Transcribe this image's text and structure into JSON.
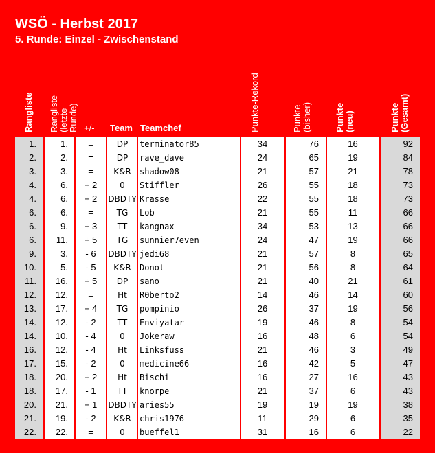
{
  "title": "WSÖ - Herbst 2017",
  "subtitle": "5. Runde: Einzel - Zwischenstand",
  "headers": {
    "rank": "Rangliste",
    "prev_rank": "Rangliste (letzte Runde)",
    "diff": "+/-",
    "team": "Team",
    "chief": "Teamchef",
    "record": "Punkte-Rekord",
    "points_before": "Punkte (bisher)",
    "points_new": "Punkte (neu)",
    "points_total": "Punkte (Gesamt)"
  },
  "colors": {
    "background": "#ff0000",
    "highlight_column": "#d9d9d9",
    "cell": "#ffffff",
    "text": "#000000"
  },
  "rows": [
    {
      "rank": "1.",
      "prev": "1.",
      "diff": "=",
      "team": "DP",
      "chief": "terminator85",
      "record": "34",
      "bisher": "76",
      "neu": "16",
      "gesamt": "92"
    },
    {
      "rank": "2.",
      "prev": "2.",
      "diff": "=",
      "team": "DP",
      "chief": "rave_dave",
      "record": "24",
      "bisher": "65",
      "neu": "19",
      "gesamt": "84"
    },
    {
      "rank": "3.",
      "prev": "3.",
      "diff": "=",
      "team": "K&R",
      "chief": "shadow08",
      "record": "21",
      "bisher": "57",
      "neu": "21",
      "gesamt": "78"
    },
    {
      "rank": "4.",
      "prev": "6.",
      "diff": "+ 2",
      "team": "0",
      "chief": "Stiffler",
      "record": "26",
      "bisher": "55",
      "neu": "18",
      "gesamt": "73"
    },
    {
      "rank": "4.",
      "prev": "6.",
      "diff": "+ 2",
      "team": "DBDTY",
      "chief": "Krasse",
      "record": "22",
      "bisher": "55",
      "neu": "18",
      "gesamt": "73"
    },
    {
      "rank": "6.",
      "prev": "6.",
      "diff": "=",
      "team": "TG",
      "chief": "Lob",
      "record": "21",
      "bisher": "55",
      "neu": "11",
      "gesamt": "66"
    },
    {
      "rank": "6.",
      "prev": "9.",
      "diff": "+ 3",
      "team": "TT",
      "chief": "kangnax",
      "record": "34",
      "bisher": "53",
      "neu": "13",
      "gesamt": "66"
    },
    {
      "rank": "6.",
      "prev": "11.",
      "diff": "+ 5",
      "team": "TG",
      "chief": "sunnier7even",
      "record": "24",
      "bisher": "47",
      "neu": "19",
      "gesamt": "66"
    },
    {
      "rank": "9.",
      "prev": "3.",
      "diff": "- 6",
      "team": "DBDTY",
      "chief": "jedi68",
      "record": "21",
      "bisher": "57",
      "neu": "8",
      "gesamt": "65"
    },
    {
      "rank": "10.",
      "prev": "5.",
      "diff": "- 5",
      "team": "K&R",
      "chief": "Donot",
      "record": "21",
      "bisher": "56",
      "neu": "8",
      "gesamt": "64"
    },
    {
      "rank": "11.",
      "prev": "16.",
      "diff": "+ 5",
      "team": "DP",
      "chief": "sano",
      "record": "21",
      "bisher": "40",
      "neu": "21",
      "gesamt": "61"
    },
    {
      "rank": "12.",
      "prev": "12.",
      "diff": "=",
      "team": "Ht",
      "chief": "R0berto2",
      "record": "14",
      "bisher": "46",
      "neu": "14",
      "gesamt": "60"
    },
    {
      "rank": "13.",
      "prev": "17.",
      "diff": "+ 4",
      "team": "TG",
      "chief": "pompinio",
      "record": "26",
      "bisher": "37",
      "neu": "19",
      "gesamt": "56"
    },
    {
      "rank": "14.",
      "prev": "12.",
      "diff": "- 2",
      "team": "TT",
      "chief": "Enviyatar",
      "record": "19",
      "bisher": "46",
      "neu": "8",
      "gesamt": "54"
    },
    {
      "rank": "14.",
      "prev": "10.",
      "diff": "- 4",
      "team": "0",
      "chief": "Jokeraw",
      "record": "16",
      "bisher": "48",
      "neu": "6",
      "gesamt": "54"
    },
    {
      "rank": "16.",
      "prev": "12.",
      "diff": "- 4",
      "team": "Ht",
      "chief": "Linksfuss",
      "record": "21",
      "bisher": "46",
      "neu": "3",
      "gesamt": "49"
    },
    {
      "rank": "17.",
      "prev": "15.",
      "diff": "- 2",
      "team": "0",
      "chief": "medicine66",
      "record": "16",
      "bisher": "42",
      "neu": "5",
      "gesamt": "47"
    },
    {
      "rank": "18.",
      "prev": "20.",
      "diff": "+ 2",
      "team": "Ht",
      "chief": "Bischi",
      "record": "16",
      "bisher": "27",
      "neu": "16",
      "gesamt": "43"
    },
    {
      "rank": "18.",
      "prev": "17.",
      "diff": "- 1",
      "team": "TT",
      "chief": "knorpe",
      "record": "21",
      "bisher": "37",
      "neu": "6",
      "gesamt": "43"
    },
    {
      "rank": "20.",
      "prev": "21.",
      "diff": "+ 1",
      "team": "DBDTY",
      "chief": "aries55",
      "record": "19",
      "bisher": "19",
      "neu": "19",
      "gesamt": "38"
    },
    {
      "rank": "21.",
      "prev": "19.",
      "diff": "- 2",
      "team": "K&R",
      "chief": "chris1976",
      "record": "11",
      "bisher": "29",
      "neu": "6",
      "gesamt": "35"
    },
    {
      "rank": "22.",
      "prev": "22.",
      "diff": "=",
      "team": "0",
      "chief": "bueffel1",
      "record": "31",
      "bisher": "16",
      "neu": "6",
      "gesamt": "22"
    }
  ]
}
